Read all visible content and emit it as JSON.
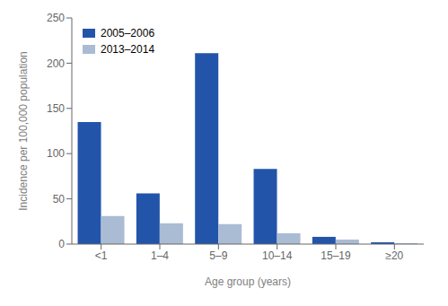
{
  "chart_data": {
    "type": "bar",
    "categories": [
      "<1",
      "1–4",
      "5–9",
      "10–14",
      "15–19",
      "≥20"
    ],
    "series": [
      {
        "name": "2005–2006",
        "color": "#2255aa",
        "values": [
          135,
          56,
          211,
          83,
          8,
          2
        ]
      },
      {
        "name": "2013–2014",
        "color": "#aabbd4",
        "values": [
          31,
          23,
          22,
          12,
          5,
          1
        ]
      }
    ],
    "xlabel": "Age group (years)",
    "ylabel": "Incidence per 100,000 population",
    "ylim": [
      0,
      250
    ],
    "yticks": [
      0,
      50,
      100,
      150,
      200,
      250
    ],
    "legend": "upper left",
    "grid": false
  }
}
